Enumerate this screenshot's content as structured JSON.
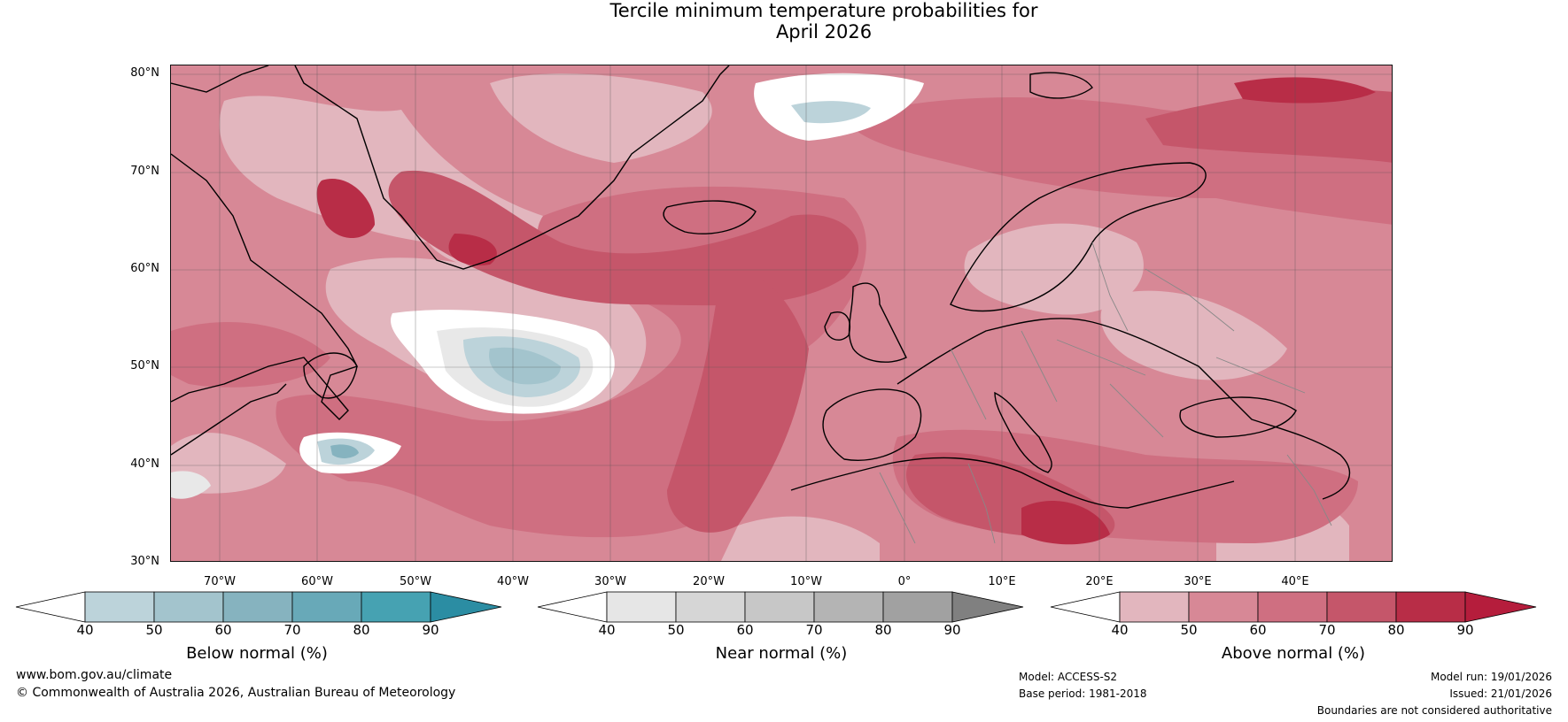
{
  "title": {
    "line1": "Tercile minimum temperature probabilities for",
    "line2": "April 2026"
  },
  "map": {
    "lat_labels": [
      "80°N",
      "70°N",
      "60°N",
      "50°N",
      "40°N",
      "30°N"
    ],
    "lon_labels": [
      "70°W",
      "60°W",
      "50°W",
      "40°W",
      "30°W",
      "20°W",
      "10°W",
      "0°",
      "10°E",
      "20°E",
      "30°E",
      "40°E"
    ],
    "lat_range": [
      30,
      81
    ],
    "lon_range": [
      -75,
      50
    ],
    "colors": {
      "above_40": "#e2b6be",
      "above_50": "#d78896",
      "above_60": "#cf6f81",
      "above_70": "#c5566a",
      "above_80": "#b82d47",
      "near_40": "#e8e8e8",
      "below_40": "#bcd3da",
      "below_50": "#a3c4cd",
      "below_60": "#86b3bf",
      "white": "#ffffff",
      "coast": "#000000",
      "border": "#888888"
    }
  },
  "colorbars": {
    "below": {
      "label": "Below normal (%)",
      "ticks": [
        "40",
        "50",
        "60",
        "70",
        "80",
        "90"
      ],
      "colors": [
        "#ffffff",
        "#bcd3da",
        "#a3c4cd",
        "#86b3bf",
        "#68a9b8",
        "#46a2b2",
        "#2b8da3"
      ]
    },
    "near": {
      "label": "Near normal (%)",
      "ticks": [
        "40",
        "50",
        "60",
        "70",
        "80",
        "90"
      ],
      "colors": [
        "#ffffff",
        "#e6e6e6",
        "#d6d6d6",
        "#c7c7c7",
        "#b4b4b4",
        "#a1a1a1",
        "#808080"
      ]
    },
    "above": {
      "label": "Above normal (%)",
      "ticks": [
        "40",
        "50",
        "60",
        "70",
        "80",
        "90"
      ],
      "colors": [
        "#ffffff",
        "#e2b6be",
        "#d78896",
        "#cf6f81",
        "#c5566a",
        "#b82d47",
        "#b51d3c"
      ]
    }
  },
  "footer": {
    "website": "www.bom.gov.au/climate",
    "copyright": "© Commonwealth of Australia 2026, Australian Bureau of Meteorology",
    "model": "Model: ACCESS-S2",
    "base_period": "Base period: 1981-2018",
    "model_run": "Model run: 19/01/2026",
    "issued": "Issued: 21/01/2026",
    "disclaimer": "Boundaries are not considered authoritative"
  }
}
